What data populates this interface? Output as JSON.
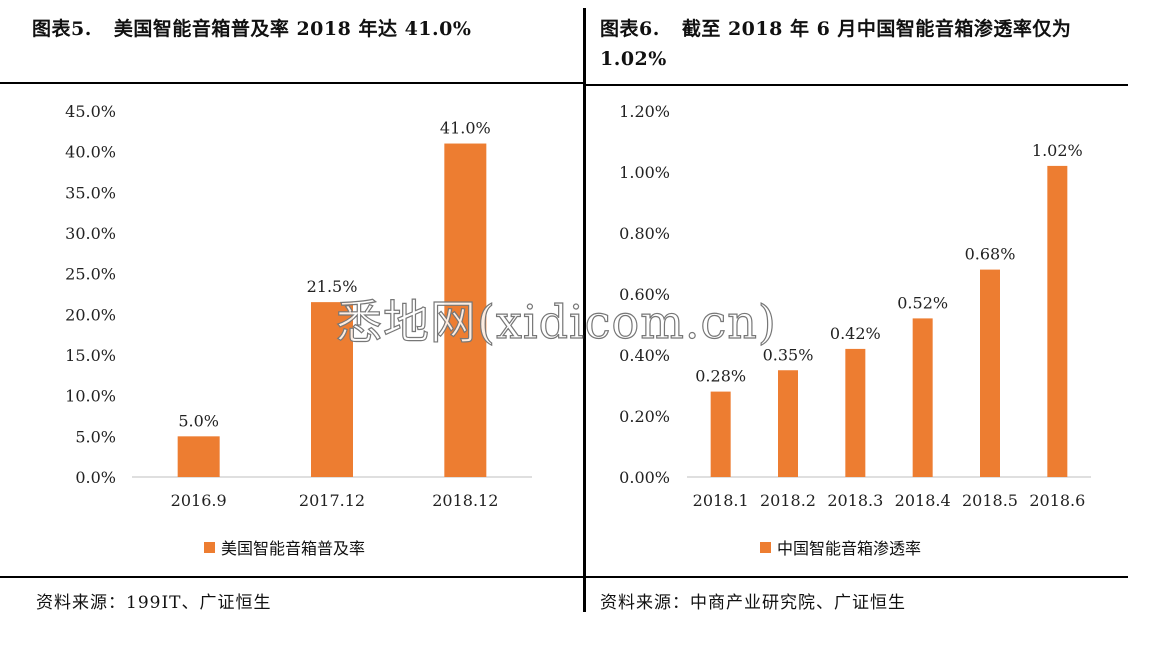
{
  "watermark": "悉地网(xidicom.cn)",
  "chart_data": [
    {
      "type": "bar",
      "fig_label": "图表5.",
      "title": "美国智能音箱普及率 2018 年达 41.0%",
      "categories": [
        "2016.9",
        "2017.12",
        "2018.12"
      ],
      "series": [
        {
          "name": "美国智能音箱普及率",
          "values": [
            5.0,
            21.5,
            41.0
          ]
        }
      ],
      "data_labels": [
        "5.0%",
        "21.5%",
        "41.0%"
      ],
      "y_ticks": [
        "0.0%",
        "5.0%",
        "10.0%",
        "15.0%",
        "20.0%",
        "25.0%",
        "30.0%",
        "35.0%",
        "40.0%",
        "45.0%"
      ],
      "ylim": [
        0,
        45
      ],
      "color": "#ED7D31",
      "grid": false,
      "legend": "bottom",
      "source": "资料来源：199IT、广证恒生"
    },
    {
      "type": "bar",
      "fig_label": "图表6.",
      "title": "截至 2018 年 6 月中国智能音箱渗透率仅为 1.02%",
      "categories": [
        "2018.1",
        "2018.2",
        "2018.3",
        "2018.4",
        "2018.5",
        "2018.6"
      ],
      "series": [
        {
          "name": "中国智能音箱渗透率",
          "values": [
            0.28,
            0.35,
            0.42,
            0.52,
            0.68,
            1.02
          ]
        }
      ],
      "data_labels": [
        "0.28%",
        "0.35%",
        "0.42%",
        "0.52%",
        "0.68%",
        "1.02%"
      ],
      "y_ticks": [
        "0.00%",
        "0.20%",
        "0.40%",
        "0.60%",
        "0.80%",
        "1.00%",
        "1.20%"
      ],
      "ylim": [
        0,
        1.2
      ],
      "color": "#ED7D31",
      "grid": false,
      "legend": "bottom",
      "source": "资料来源：中商产业研究院、广证恒生"
    }
  ]
}
